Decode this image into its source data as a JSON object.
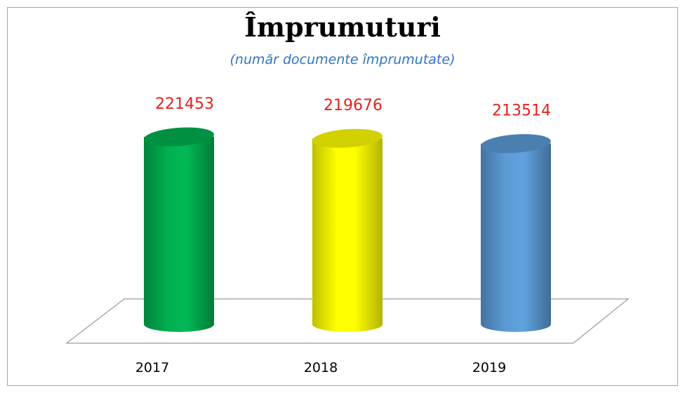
{
  "chart_data": {
    "type": "bar3d-cylinder",
    "title": "Împrumuturi",
    "subtitle": "(număr documente împrumutate)",
    "categories": [
      "2017",
      "2018",
      "2019"
    ],
    "values": [
      221453,
      219676,
      213514
    ],
    "colors": [
      "#00b050",
      "#ffff00",
      "#5b9bd5"
    ]
  }
}
